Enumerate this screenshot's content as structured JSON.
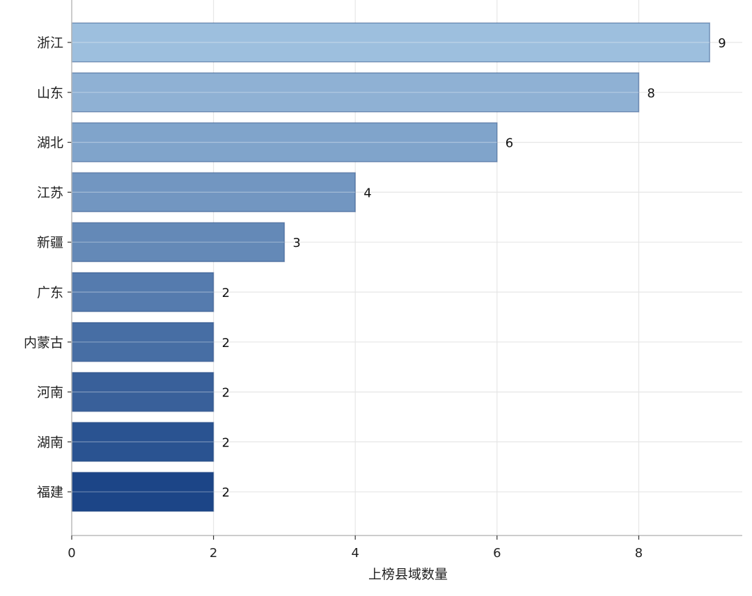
{
  "chart_data": {
    "type": "bar",
    "orientation": "horizontal",
    "categories": [
      "浙江",
      "山东",
      "湖北",
      "江苏",
      "新疆",
      "广东",
      "内蒙古",
      "河南",
      "湖南",
      "福建"
    ],
    "values": [
      9,
      8,
      6,
      4,
      3,
      2,
      2,
      2,
      2,
      2
    ],
    "data_labels": [
      "9",
      "8",
      "6",
      "4",
      "3",
      "2",
      "2",
      "2",
      "2",
      "2"
    ],
    "title": "",
    "xlabel": "上榜县域数量",
    "ylabel": "",
    "xlim": [
      0,
      9.45
    ],
    "xticks": [
      0,
      2,
      4,
      6,
      8
    ],
    "xtick_labels": [
      "0",
      "2",
      "4",
      "6",
      "8"
    ],
    "grid": true,
    "legend": "none",
    "colors": {
      "bar_start": "#9dbfde",
      "bar_end": "#1c4587",
      "grid": "#e6e6e6",
      "axis": "#bbbbbb"
    }
  }
}
